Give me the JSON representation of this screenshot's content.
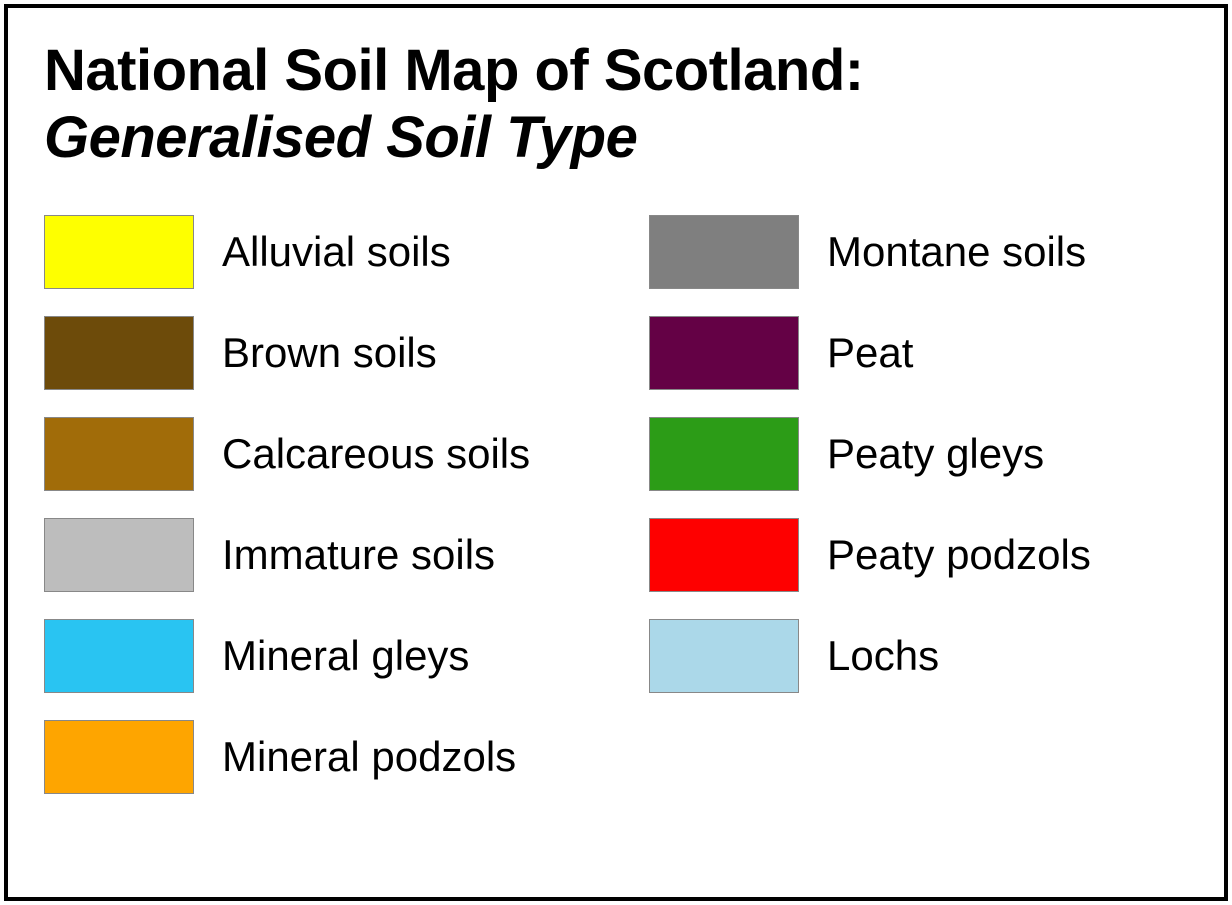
{
  "title": {
    "line1": "National Soil Map of Scotland:",
    "line2": "Generalised Soil Type",
    "fontsize": 58,
    "fontweight": 900,
    "color": "#000000"
  },
  "layout": {
    "container_border_color": "#000000",
    "container_border_width": 4,
    "background_color": "#ffffff",
    "swatch_width": 150,
    "swatch_height": 74,
    "swatch_border_color": "#888888",
    "label_fontsize": 42,
    "label_color": "#000000",
    "columns": 2
  },
  "legend": {
    "left": [
      {
        "name": "alluvial-soils",
        "label": "Alluvial soils",
        "color": "#feff00"
      },
      {
        "name": "brown-soils",
        "label": "Brown soils",
        "color": "#6d4b0a"
      },
      {
        "name": "calcareous-soils",
        "label": "Calcareous soils",
        "color": "#a16c09"
      },
      {
        "name": "immature-soils",
        "label": "Immature soils",
        "color": "#bdbdbd"
      },
      {
        "name": "mineral-gleys",
        "label": "Mineral gleys",
        "color": "#29c4f2"
      },
      {
        "name": "mineral-podzols",
        "label": "Mineral podzols",
        "color": "#fea500"
      }
    ],
    "right": [
      {
        "name": "montane-soils",
        "label": "Montane soils",
        "color": "#7f7f7f"
      },
      {
        "name": "peat",
        "label": "Peat",
        "color": "#640145"
      },
      {
        "name": "peaty-gleys",
        "label": "Peaty gleys",
        "color": "#2c9c17"
      },
      {
        "name": "peaty-podzols",
        "label": "Peaty podzols",
        "color": "#fe0000"
      },
      {
        "name": "lochs",
        "label": "Lochs",
        "color": "#abd8e9"
      }
    ]
  }
}
